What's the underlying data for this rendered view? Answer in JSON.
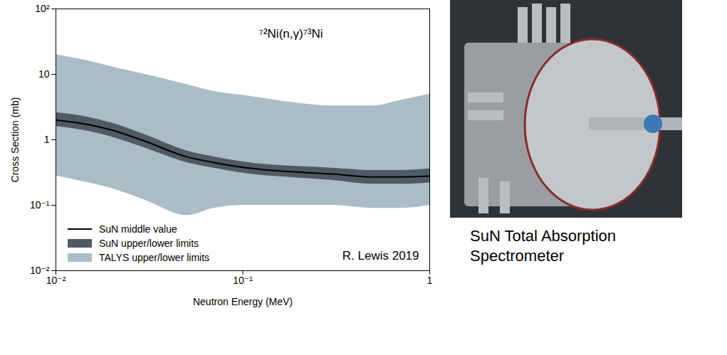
{
  "chart_data": {
    "type": "line",
    "title": "⁷²Ni(n,γ)⁷³Ni",
    "x_label": "Neutron Energy (MeV)",
    "y_label": "Cross Section (mb)",
    "annotation": "R. Lewis 2019",
    "caption": "SuN Total Absorption Spectrometer",
    "log": true,
    "grid": false,
    "legend": "lower left",
    "xlim": [
      0.01,
      1
    ],
    "ylim": [
      0.01,
      100
    ],
    "xticks": [
      {
        "value": 0.01,
        "label": "10⁻²"
      },
      {
        "value": 0.1,
        "label": "10⁻¹"
      },
      1
    ],
    "yticks": [
      {
        "value": 0.01,
        "label": "10⁻²"
      },
      {
        "value": 0.1,
        "label": "10⁻¹"
      },
      1,
      10,
      {
        "value": 100,
        "label": "10²"
      }
    ],
    "x": [
      0.01,
      0.015,
      0.02,
      0.03,
      0.05,
      0.07,
      0.1,
      0.2,
      0.3,
      0.5,
      0.7,
      1
    ],
    "series": [
      {
        "name": "TALYS upper/lower limits",
        "type": "area",
        "color": "#a9bcc8",
        "lower": [
          0.28,
          0.22,
          0.18,
          0.12,
          0.07,
          0.09,
          0.1,
          0.1,
          0.1,
          0.09,
          0.09,
          0.1
        ],
        "upper": [
          20,
          16,
          13,
          10,
          7,
          5.5,
          4.8,
          3.6,
          3.3,
          3.3,
          4,
          5
        ]
      },
      {
        "name": "SuN upper/lower limits",
        "type": "area",
        "color": "#4f5a64",
        "lower": [
          1.6,
          1.35,
          1.1,
          0.75,
          0.45,
          0.37,
          0.31,
          0.26,
          0.24,
          0.21,
          0.21,
          0.22
        ],
        "upper": [
          2.6,
          2.2,
          1.8,
          1.2,
          0.68,
          0.55,
          0.46,
          0.39,
          0.37,
          0.34,
          0.34,
          0.36
        ]
      },
      {
        "name": "SuN middle value",
        "type": "line",
        "color": "#000000",
        "values": [
          2.0,
          1.7,
          1.4,
          0.95,
          0.55,
          0.45,
          0.38,
          0.32,
          0.3,
          0.27,
          0.27,
          0.28
        ]
      }
    ]
  }
}
